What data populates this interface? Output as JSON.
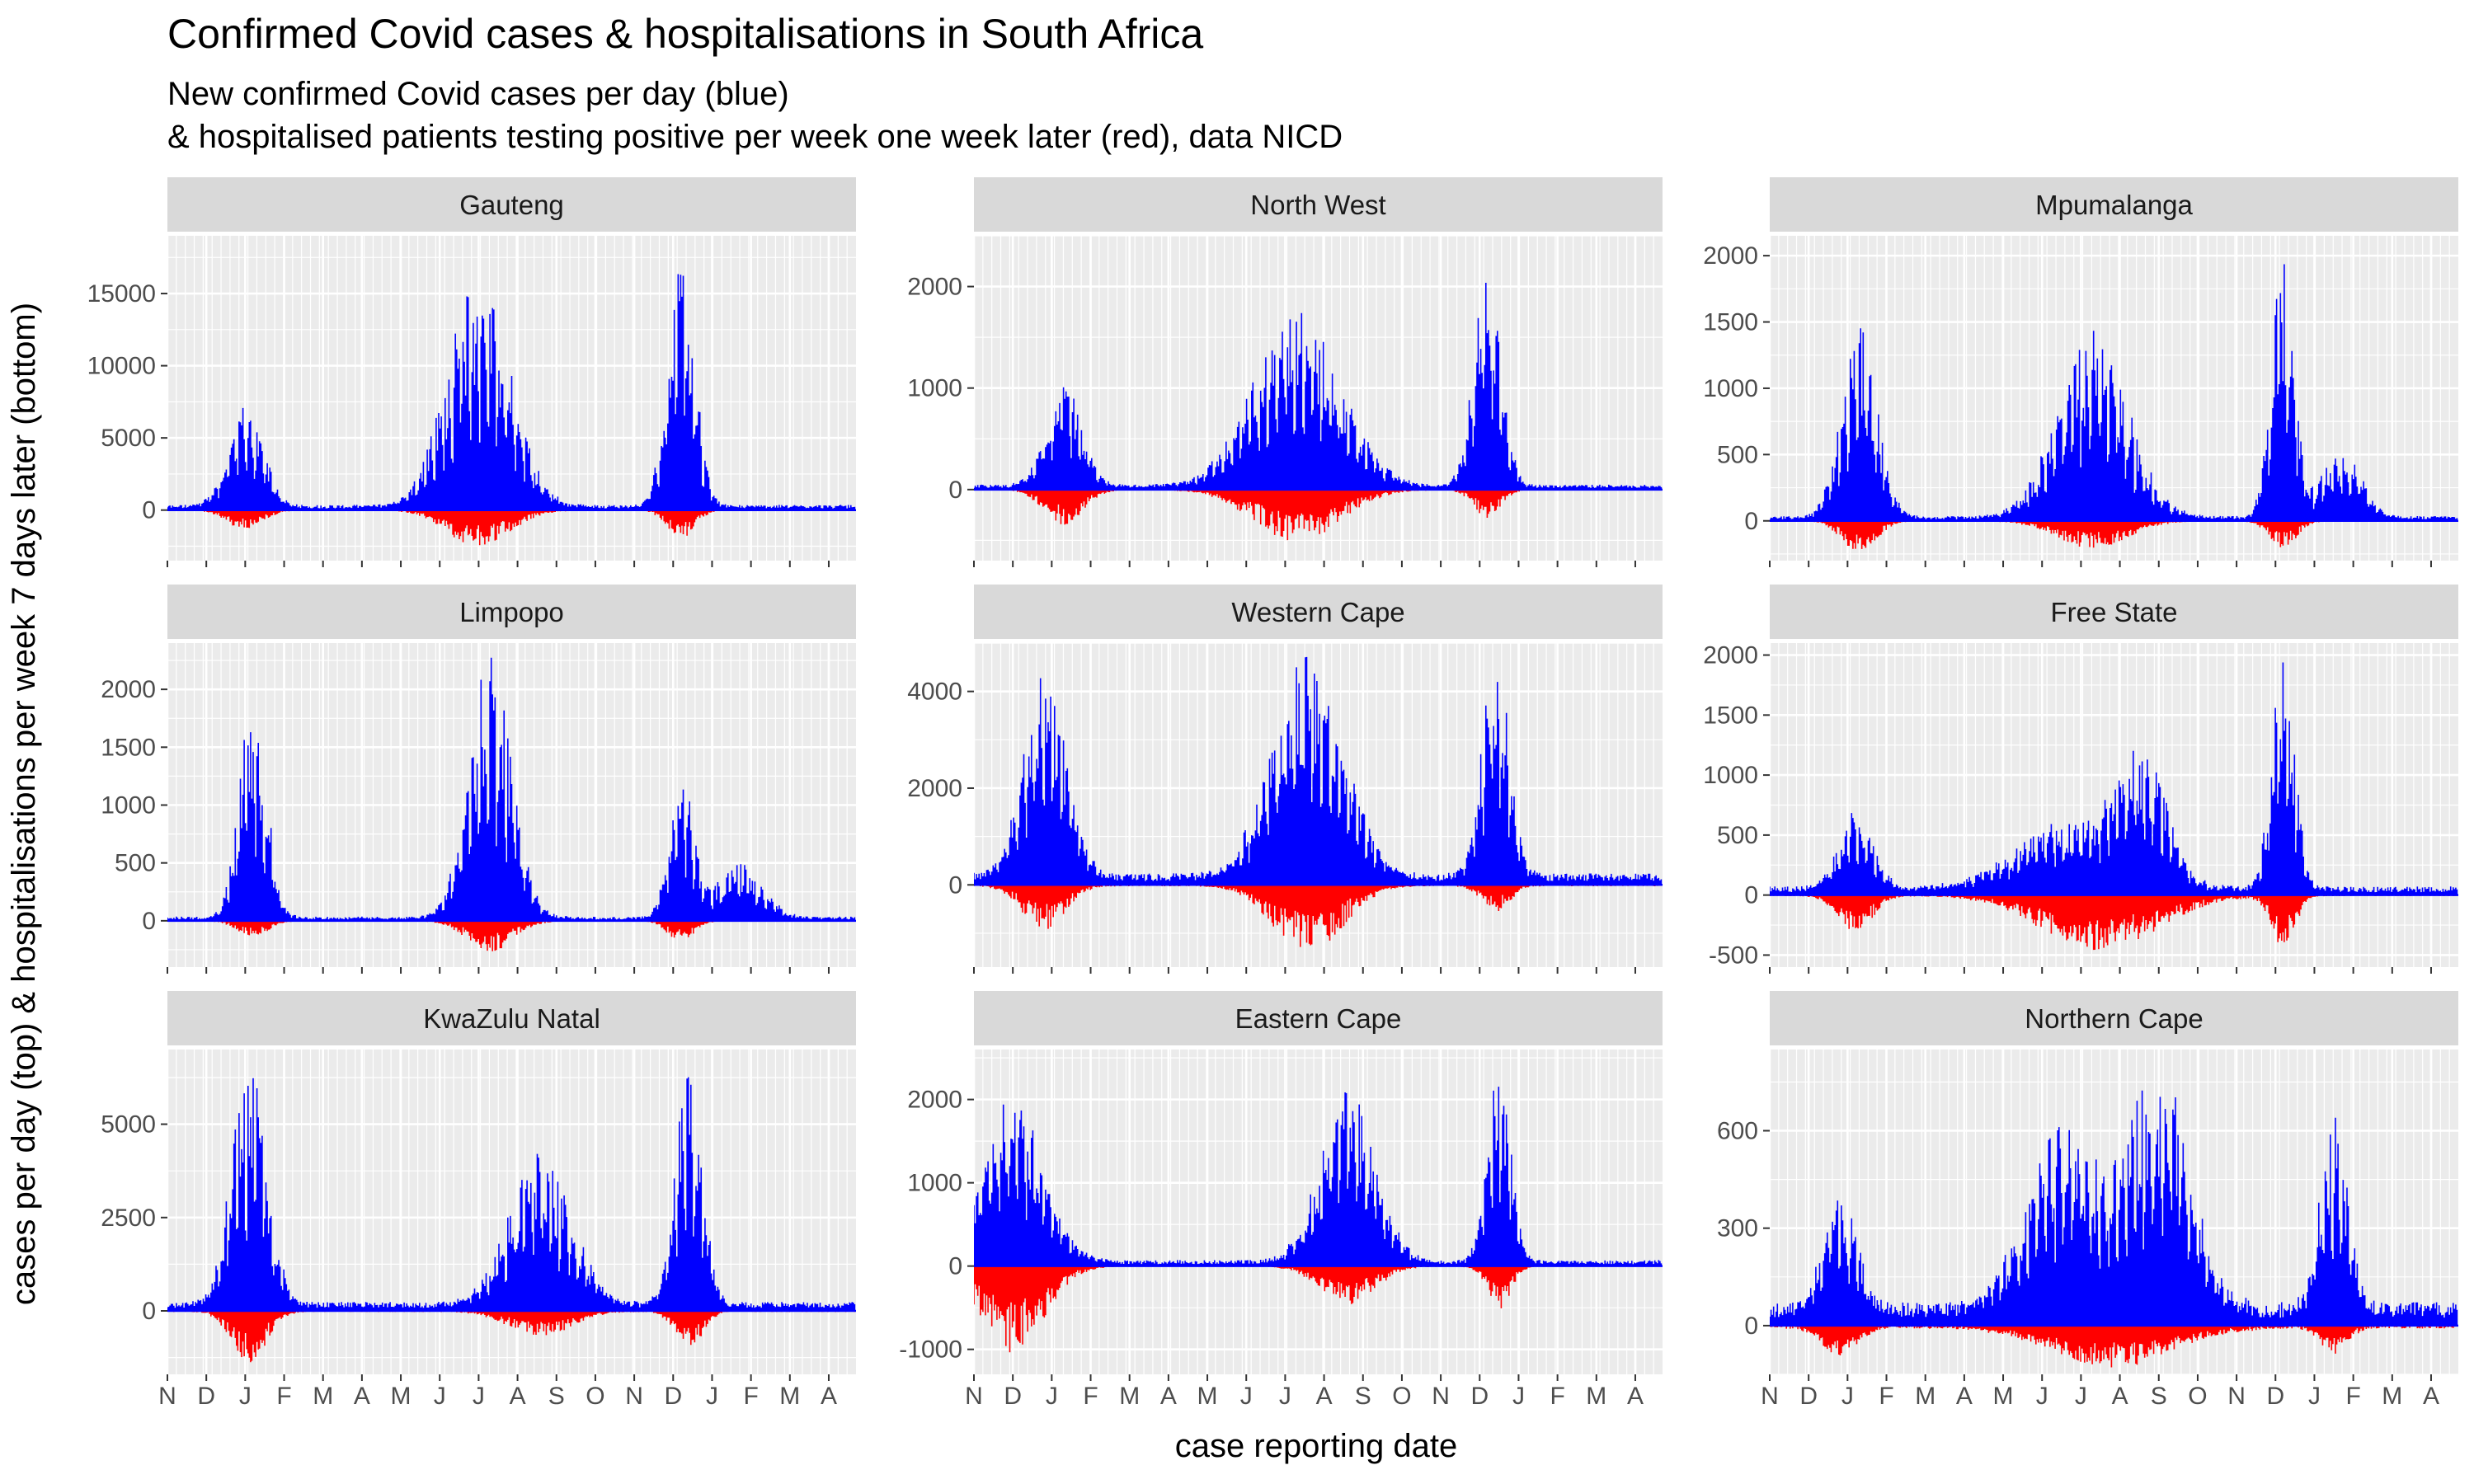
{
  "title": "Confirmed Covid cases & hospitalisations in South Africa",
  "subtitle_line1": "New confirmed Covid cases per day (blue)",
  "subtitle_line2": "& hospitalised patients testing positive per week one week later (red), data NICD",
  "colors": {
    "cases": "#0000FF",
    "hospitalisations": "#FF0000",
    "panel_bg": "#EBEBEB",
    "strip_bg": "#D9D9D9",
    "grid": "#FFFFFF"
  },
  "chart_data": {
    "type": "bar",
    "xlabel": "case reporting date",
    "ylabel": "cases per day (top) & hospitalisations per week 7 days later (bottom)",
    "x_tick_labels": [
      "N",
      "D",
      "J",
      "F",
      "M",
      "A",
      "M",
      "J",
      "J",
      "A",
      "S",
      "O",
      "N",
      "D",
      "J",
      "F",
      "M",
      "A"
    ],
    "x_range_months": [
      0,
      17.7
    ],
    "series_names": [
      "cases per day (top)",
      "hospitalisations per week 7 days later (bottom)"
    ],
    "panels": [
      {
        "name": "Gauteng",
        "ylim": [
          -3500,
          19000
        ],
        "yticks": [
          0,
          5000,
          10000,
          15000
        ],
        "cases_peaks": [
          [
            2.0,
            6500,
            0.45
          ],
          [
            8.0,
            14500,
            0.8
          ],
          [
            13.2,
            16000,
            0.35
          ]
        ],
        "cases_base": 300,
        "hosp_peaks": [
          [
            2.0,
            1200,
            0.45
          ],
          [
            8.0,
            2200,
            0.8
          ],
          [
            13.2,
            1700,
            0.35
          ]
        ]
      },
      {
        "name": "North West",
        "ylim": [
          -700,
          2500
        ],
        "yticks": [
          0,
          1000,
          2000
        ],
        "cases_peaks": [
          [
            2.3,
            950,
            0.45
          ],
          [
            8.3,
            1600,
            1.1
          ],
          [
            13.2,
            2000,
            0.35
          ]
        ],
        "cases_base": 40,
        "hosp_peaks": [
          [
            2.3,
            300,
            0.5
          ],
          [
            8.3,
            450,
            1.1
          ],
          [
            13.2,
            250,
            0.35
          ]
        ]
      },
      {
        "name": "Mpumalanga",
        "ylim": [
          -300,
          2150
        ],
        "yticks": [
          0,
          500,
          1000,
          1500,
          2000
        ],
        "cases_peaks": [
          [
            2.3,
            1350,
            0.45
          ],
          [
            8.3,
            1300,
            0.9
          ],
          [
            13.2,
            1800,
            0.3
          ],
          [
            14.7,
            480,
            0.5
          ]
        ],
        "cases_base": 30,
        "hosp_peaks": [
          [
            2.3,
            200,
            0.45
          ],
          [
            8.3,
            180,
            0.9
          ],
          [
            13.2,
            180,
            0.35
          ]
        ]
      },
      {
        "name": "Limpopo",
        "ylim": [
          -400,
          2400
        ],
        "yticks": [
          0,
          500,
          1000,
          1500,
          2000
        ],
        "cases_peaks": [
          [
            2.2,
            1750,
            0.35
          ],
          [
            8.3,
            2050,
            0.55
          ],
          [
            13.2,
            1200,
            0.3
          ],
          [
            14.7,
            420,
            0.6
          ]
        ],
        "cases_base": 30,
        "hosp_peaks": [
          [
            2.2,
            120,
            0.4
          ],
          [
            8.3,
            230,
            0.6
          ],
          [
            13.2,
            150,
            0.35
          ]
        ]
      },
      {
        "name": "Western Cape",
        "ylim": [
          -1700,
          5000
        ],
        "yticks": [
          0,
          2000,
          4000
        ],
        "cases_peaks": [
          [
            1.8,
            3900,
            0.55
          ],
          [
            8.6,
            4300,
            0.9
          ],
          [
            13.4,
            4400,
            0.35
          ]
        ],
        "cases_base": 200,
        "hosp_peaks": [
          [
            1.8,
            800,
            0.55
          ],
          [
            8.6,
            1200,
            0.9
          ],
          [
            13.4,
            500,
            0.35
          ]
        ]
      },
      {
        "name": "Free State",
        "ylim": [
          -600,
          2100
        ],
        "yticks": [
          -500,
          0,
          500,
          1000,
          1500,
          2000
        ],
        "cases_peaks": [
          [
            2.2,
            580,
            0.45
          ],
          [
            7.8,
            560,
            1.4
          ],
          [
            9.6,
            850,
            0.6
          ],
          [
            13.2,
            1750,
            0.3
          ]
        ],
        "cases_base": 60,
        "hosp_peaks": [
          [
            2.2,
            260,
            0.45
          ],
          [
            8.5,
            400,
            1.5
          ],
          [
            13.2,
            380,
            0.3
          ]
        ]
      },
      {
        "name": "KwaZulu Natal",
        "ylim": [
          -1700,
          7000
        ],
        "yticks": [
          0,
          2500,
          5000
        ],
        "cases_peaks": [
          [
            2.1,
            6000,
            0.45
          ],
          [
            9.6,
            3700,
            0.8
          ],
          [
            13.4,
            5700,
            0.35
          ]
        ],
        "cases_base": 200,
        "hosp_peaks": [
          [
            2.1,
            1200,
            0.45
          ],
          [
            9.6,
            600,
            0.8
          ],
          [
            13.4,
            900,
            0.35
          ]
        ]
      },
      {
        "name": "Eastern Cape",
        "ylim": [
          -1300,
          2600
        ],
        "yticks": [
          -1000,
          0,
          1000,
          2000
        ],
        "cases_peaks": [
          [
            1.0,
            1800,
            0.8
          ],
          [
            9.6,
            1900,
            0.7
          ],
          [
            13.5,
            2200,
            0.3
          ]
        ],
        "cases_base": 60,
        "hosp_peaks": [
          [
            1.0,
            900,
            0.8
          ],
          [
            9.6,
            400,
            0.7
          ],
          [
            13.5,
            450,
            0.3
          ]
        ]
      },
      {
        "name": "Northern Cape",
        "ylim": [
          -150,
          850
        ],
        "yticks": [
          0,
          300,
          600
        ],
        "cases_peaks": [
          [
            1.8,
            310,
            0.45
          ],
          [
            7.5,
            520,
            0.9
          ],
          [
            10.0,
            670,
            0.8
          ],
          [
            14.5,
            560,
            0.35
          ]
        ],
        "cases_base": 60,
        "hosp_peaks": [
          [
            1.8,
            80,
            0.45
          ],
          [
            8.8,
            110,
            1.5
          ],
          [
            14.5,
            70,
            0.35
          ]
        ]
      }
    ]
  }
}
